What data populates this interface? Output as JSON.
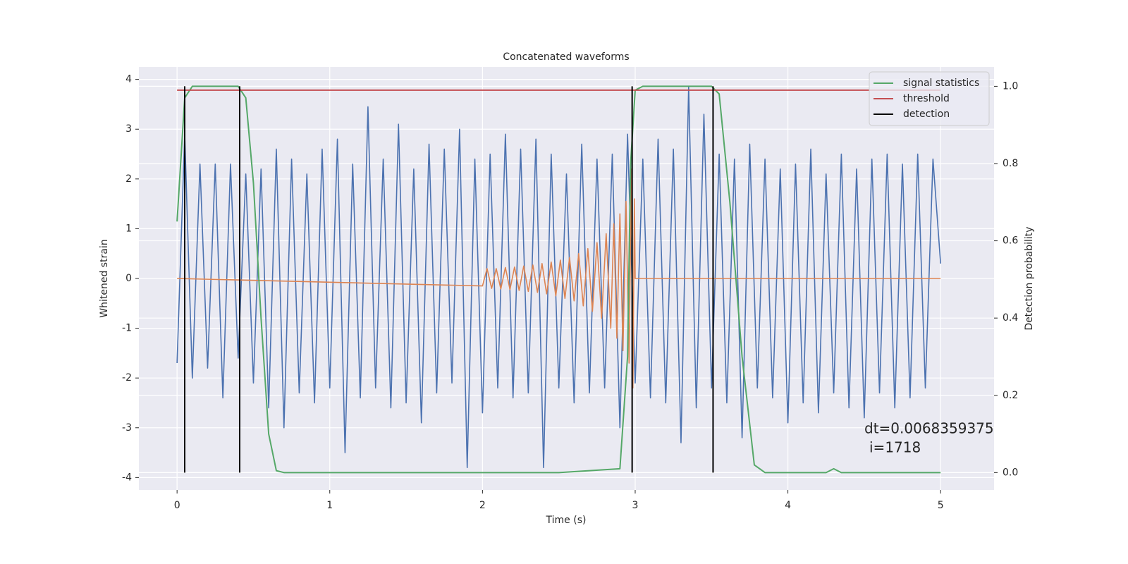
{
  "chart_data": {
    "type": "line",
    "title": "Concatenated waveforms",
    "x_label": "Time (s)",
    "y_label": "Whitened strain",
    "y2_label": "Detection probability",
    "xlim": [
      -0.25,
      5.35
    ],
    "ylim": [
      -4.25,
      4.25
    ],
    "y2lim": [
      -0.045,
      1.05
    ],
    "xticks": [
      0,
      1,
      2,
      3,
      4,
      5
    ],
    "yticks": [
      -4,
      -3,
      -2,
      -1,
      0,
      1,
      2,
      3,
      4
    ],
    "y2ticks": [
      {
        "value": 0,
        "label": "0.0"
      },
      0.2,
      0.4,
      0.6,
      0.8,
      {
        "value": 1,
        "label": "1.0"
      }
    ],
    "grid": true,
    "legend": "upper right",
    "series": [
      {
        "color": "#4c72b0",
        "x": [
          0,
          0.05,
          0.1,
          0.15,
          0.2,
          0.25,
          0.3,
          0.35,
          0.4,
          0.45,
          0.5,
          0.55,
          0.6,
          0.65,
          0.7,
          0.75,
          0.8,
          0.85,
          0.9,
          0.95,
          1.0,
          1.05,
          1.1,
          1.15,
          1.2,
          1.25,
          1.3,
          1.35,
          1.4,
          1.45,
          1.5,
          1.55,
          1.6,
          1.65,
          1.7,
          1.75,
          1.8,
          1.85,
          1.9,
          1.95,
          2.0,
          2.05,
          2.1,
          2.15,
          2.2,
          2.25,
          2.3,
          2.35,
          2.4,
          2.45,
          2.5,
          2.55,
          2.6,
          2.65,
          2.7,
          2.75,
          2.8,
          2.85,
          2.9,
          2.95,
          3.0,
          3.05,
          3.1,
          3.15,
          3.2,
          3.25,
          3.3,
          3.35,
          3.4,
          3.45,
          3.5,
          3.55,
          3.6,
          3.65,
          3.7,
          3.75,
          3.8,
          3.85,
          3.9,
          3.95,
          4.0,
          4.05,
          4.1,
          4.15,
          4.2,
          4.25,
          4.3,
          4.35,
          4.4,
          4.45,
          4.5,
          4.55,
          4.6,
          4.65,
          4.7,
          4.75,
          4.8,
          4.85,
          4.9,
          4.95,
          5.0
        ],
        "values": [
          -1.7,
          2.9,
          -2.0,
          2.3,
          -1.8,
          2.3,
          -2.4,
          2.3,
          -1.6,
          2.1,
          -2.1,
          2.2,
          -2.6,
          2.6,
          -3.0,
          2.4,
          -2.3,
          2.1,
          -2.5,
          2.6,
          -2.2,
          2.8,
          -3.5,
          2.3,
          -2.4,
          3.45,
          -2.2,
          2.4,
          -2.6,
          3.1,
          -2.5,
          2.2,
          -2.9,
          2.7,
          -2.3,
          2.6,
          -2.1,
          3.0,
          -3.8,
          2.4,
          -2.7,
          2.5,
          -2.2,
          2.9,
          -2.4,
          2.6,
          -2.3,
          2.8,
          -3.8,
          2.5,
          -2.2,
          2.1,
          -2.5,
          2.7,
          -2.3,
          2.4,
          -2.2,
          2.5,
          -3.0,
          2.9,
          -2.1,
          2.4,
          -2.4,
          2.8,
          -2.5,
          2.6,
          -3.3,
          3.85,
          -2.6,
          3.3,
          -2.2,
          2.5,
          -2.5,
          2.4,
          -3.2,
          2.7,
          -2.2,
          2.4,
          -2.4,
          2.2,
          -2.9,
          2.3,
          -2.5,
          2.6,
          -2.7,
          2.1,
          -2.3,
          2.5,
          -2.6,
          2.2,
          -2.8,
          2.4,
          -2.3,
          2.5,
          -2.6,
          2.3,
          -2.4,
          2.5,
          -2.2,
          2.4,
          0.3
        ]
      },
      {
        "color": "#dd8452",
        "x": [
          0,
          2.0,
          2.03,
          2.06,
          2.09,
          2.12,
          2.15,
          2.18,
          2.21,
          2.24,
          2.27,
          2.3,
          2.33,
          2.36,
          2.39,
          2.42,
          2.45,
          2.48,
          2.51,
          2.54,
          2.57,
          2.6,
          2.63,
          2.66,
          2.69,
          2.72,
          2.75,
          2.78,
          2.81,
          2.84,
          2.86,
          2.88,
          2.9,
          2.92,
          2.94,
          2.96,
          2.975,
          2.985,
          2.995,
          3.0,
          5.0
        ],
        "values": [
          0,
          -0.15,
          0.2,
          -0.2,
          0.2,
          -0.21,
          0.22,
          -0.22,
          0.23,
          -0.24,
          0.25,
          -0.26,
          0.27,
          -0.28,
          0.3,
          -0.31,
          0.33,
          -0.35,
          0.37,
          -0.4,
          0.42,
          -0.45,
          0.5,
          -0.55,
          0.6,
          -0.66,
          0.72,
          -0.8,
          0.9,
          -1.0,
          1.1,
          -1.2,
          1.3,
          -1.45,
          1.55,
          -1.7,
          2.2,
          -2.2,
          1.6,
          0,
          0
        ]
      },
      {
        "name": "signal statistics",
        "color": "#55a868",
        "axis": "y2",
        "x": [
          0,
          0.05,
          0.1,
          0.4,
          0.45,
          0.5,
          0.55,
          0.6,
          0.65,
          0.7,
          2.5,
          2.9,
          2.95,
          2.97,
          3.0,
          3.05,
          3.5,
          3.55,
          3.62,
          3.7,
          3.78,
          3.85,
          4.25,
          4.3,
          4.35,
          5.0
        ],
        "values": [
          0.65,
          0.97,
          1.0,
          1.0,
          0.97,
          0.75,
          0.4,
          0.1,
          0.005,
          0,
          0,
          0.01,
          0.3,
          0.8,
          0.99,
          1.0,
          1.0,
          0.98,
          0.7,
          0.3,
          0.02,
          0,
          0,
          0.01,
          0,
          0
        ]
      },
      {
        "name": "threshold",
        "color": "#c44e52",
        "axis": "y2",
        "x": [
          0,
          5
        ],
        "values": [
          0.99,
          0.99
        ]
      },
      {
        "name": "detection",
        "color": "#000000",
        "axis": "y2",
        "kind": "vlines",
        "x": [
          0.05,
          0.41,
          2.98,
          3.51
        ],
        "ymin": 0,
        "ymax": 1.0
      }
    ],
    "annotation": [
      "dt=0.0068359375",
      "i=1718"
    ]
  }
}
